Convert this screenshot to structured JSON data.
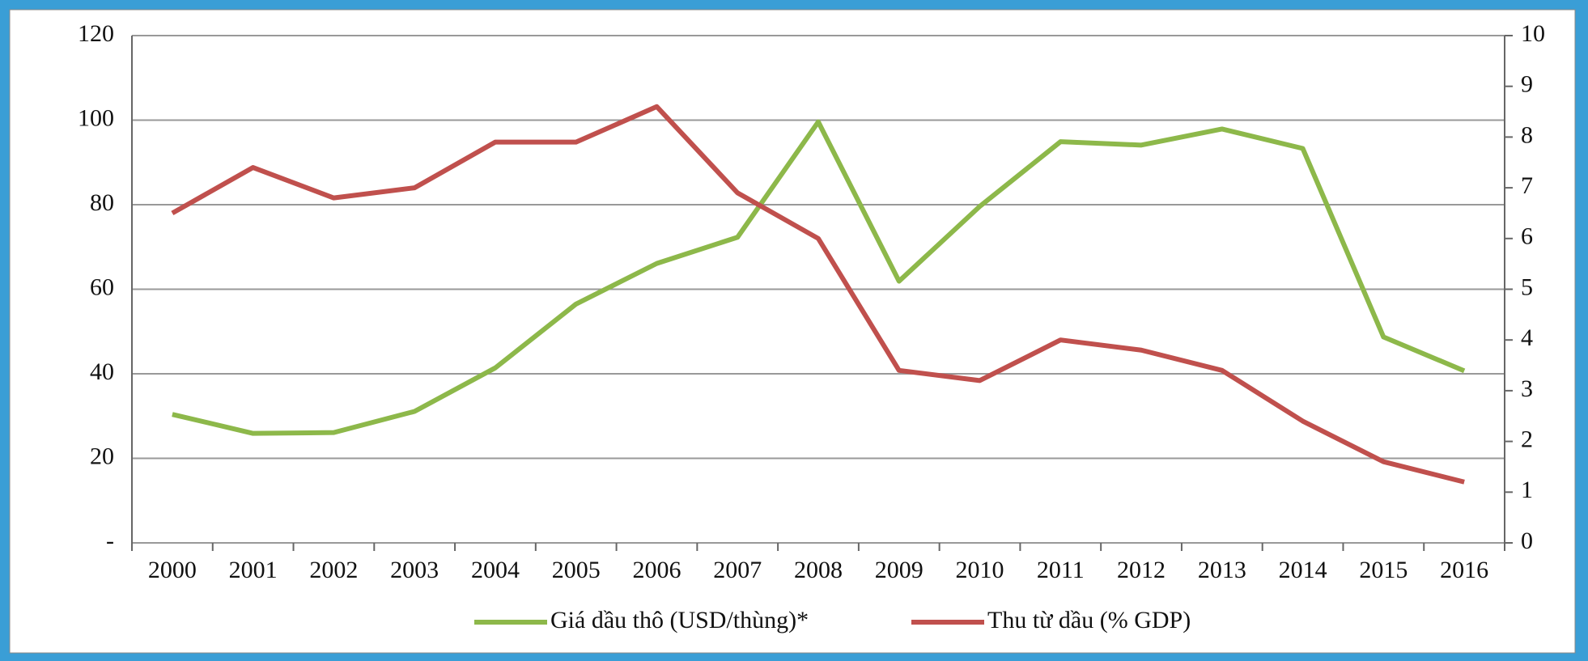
{
  "chart_data": {
    "type": "line",
    "categories": [
      "2000",
      "2001",
      "2002",
      "2003",
      "2004",
      "2005",
      "2006",
      "2007",
      "2008",
      "2009",
      "2010",
      "2011",
      "2012",
      "2013",
      "2014",
      "2015",
      "2016"
    ],
    "series": [
      {
        "name": "Giá dầu thô (USD/thùng)*",
        "color": "#8db84a",
        "values": [
          30.4,
          25.9,
          26.1,
          31.1,
          41.4,
          56.5,
          66.1,
          72.3,
          99.6,
          61.9,
          79.6,
          94.9,
          94.1,
          97.9,
          93.3,
          48.7,
          40.7
        ]
      },
      {
        "name": "Thu từ dầu (% GDP)",
        "color": "#c0504d",
        "axis": "y2",
        "values": [
          6.5,
          7.4,
          6.8,
          7.0,
          7.9,
          7.9,
          8.6,
          6.9,
          6.0,
          3.4,
          3.2,
          4.0,
          3.8,
          3.4,
          2.4,
          1.6,
          1.2
        ]
      }
    ],
    "ylim": [
      0,
      120
    ],
    "yticks": [
      {
        "value": 0,
        "label": "-"
      },
      20,
      40,
      60,
      80,
      100,
      120
    ],
    "y2lim": [
      0,
      10
    ],
    "y2ticks": [
      0,
      1,
      2,
      3,
      4,
      5,
      6,
      7,
      8,
      9,
      10
    ],
    "grid": true,
    "legend": "bottom"
  }
}
